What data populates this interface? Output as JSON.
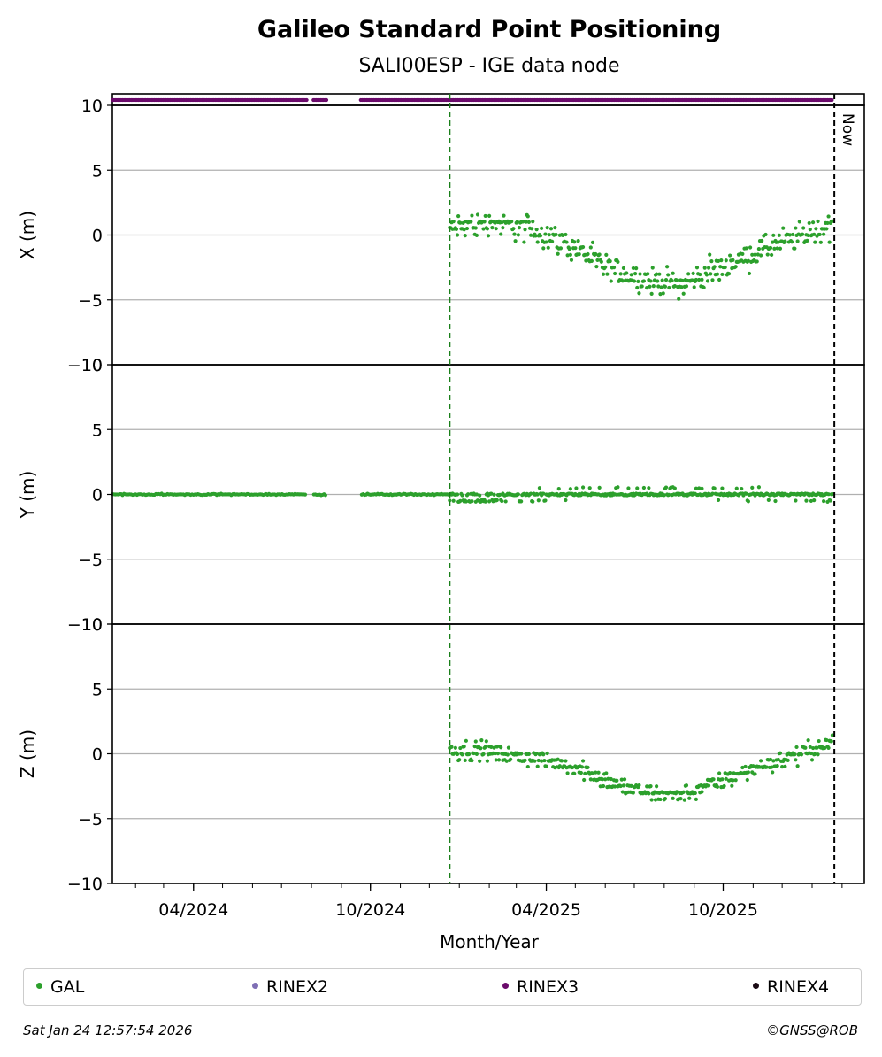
{
  "chart_data": {
    "type": "scatter",
    "title": "Galileo Standard Point Positioning",
    "subtitle": "SALI00ESP - IGE data node",
    "xlabel": "Month/Year",
    "x_range": [
      "2024-01-08",
      "2026-02-24"
    ],
    "x_ticks": [
      {
        "date": "2024-04-01",
        "label": "04/2024"
      },
      {
        "date": "2024-10-01",
        "label": "10/2024"
      },
      {
        "date": "2025-04-01",
        "label": "04/2025"
      },
      {
        "date": "2025-10-01",
        "label": "10/2025"
      }
    ],
    "grid": "horizontal",
    "now_label": "Now",
    "now_date": "2026-01-24",
    "solution_start_date": "2024-12-22",
    "panels": [
      {
        "ylabel": "X (m)",
        "ylim": [
          -10,
          10
        ],
        "yticks": [
          -10,
          -5,
          0,
          5,
          10
        ],
        "tick_labels": [
          "−10",
          "−5",
          "0",
          "5",
          "10"
        ],
        "series": [
          {
            "name": "GAL",
            "color": "#2ca02c",
            "start": "2024-12-22",
            "end": "2026-01-22",
            "trend": [
              [
                "2024-12-22",
                0.5
              ],
              [
                "2025-02-01",
                1.0
              ],
              [
                "2025-03-15",
                0.5
              ],
              [
                "2025-05-01",
                -1.0
              ],
              [
                "2025-06-01",
                -2.5
              ],
              [
                "2025-07-15",
                -3.5
              ],
              [
                "2025-08-20",
                -3.8
              ],
              [
                "2025-10-01",
                -2.5
              ],
              [
                "2025-11-15",
                -1.0
              ],
              [
                "2026-01-22",
                0.8
              ]
            ],
            "spread": 1.4
          }
        ]
      },
      {
        "ylabel": "Y (m)",
        "ylim": [
          -10,
          10
        ],
        "yticks": [
          -10,
          -5,
          0,
          5,
          10
        ],
        "tick_labels": [
          "−10",
          "−5",
          "0",
          "5",
          "10"
        ],
        "series": [
          {
            "name": "GAL",
            "color": "#2ca02c",
            "start": "2024-01-08",
            "end": "2024-12-22",
            "trend": [
              [
                "2024-01-08",
                0
              ],
              [
                "2024-12-22",
                0
              ]
            ],
            "spread": 0.08,
            "gaps": [
              [
                "2024-07-27",
                "2024-08-03"
              ],
              [
                "2024-08-17",
                "2024-09-21"
              ]
            ]
          },
          {
            "name": "GAL",
            "color": "#2ca02c",
            "start": "2024-12-22",
            "end": "2026-01-22",
            "trend": [
              [
                "2024-12-22",
                -0.2
              ],
              [
                "2025-02-01",
                -0.3
              ],
              [
                "2025-05-01",
                0.0
              ],
              [
                "2025-08-15",
                0.1
              ],
              [
                "2026-01-22",
                -0.1
              ]
            ],
            "spread": 0.5
          }
        ]
      },
      {
        "ylabel": "Z (m)",
        "ylim": [
          -10,
          10
        ],
        "yticks": [
          -10,
          -5,
          0,
          5,
          10
        ],
        "tick_labels": [
          "−10",
          "−5",
          "0",
          "5",
          "10"
        ],
        "series": [
          {
            "name": "GAL",
            "color": "#2ca02c",
            "start": "2024-12-22",
            "end": "2026-01-22",
            "trend": [
              [
                "2024-12-22",
                0.3
              ],
              [
                "2025-02-01",
                0.2
              ],
              [
                "2025-03-15",
                -0.3
              ],
              [
                "2025-05-01",
                -1.0
              ],
              [
                "2025-06-15",
                -2.5
              ],
              [
                "2025-07-15",
                -3.0
              ],
              [
                "2025-08-20",
                -3.2
              ],
              [
                "2025-10-01",
                -2.0
              ],
              [
                "2025-11-15",
                -0.8
              ],
              [
                "2026-01-22",
                0.8
              ]
            ],
            "spread": 0.9
          }
        ]
      }
    ],
    "availability": {
      "color": "#6b0a6b",
      "name": "RINEX3",
      "ranges": [
        [
          "2024-01-08",
          "2024-07-27"
        ],
        [
          "2024-08-03",
          "2024-08-17"
        ],
        [
          "2024-09-21",
          "2026-01-22"
        ]
      ]
    }
  },
  "legend": [
    {
      "label": "GAL",
      "color": "#2ca02c"
    },
    {
      "label": "RINEX2",
      "color": "#7f6fb5"
    },
    {
      "label": "RINEX3",
      "color": "#6b0a6b"
    },
    {
      "label": "RINEX4",
      "color": "#1a0a14"
    }
  ],
  "footer": {
    "timestamp": "Sat Jan 24 12:57:54 2026",
    "credit": "©GNSS@ROB"
  }
}
